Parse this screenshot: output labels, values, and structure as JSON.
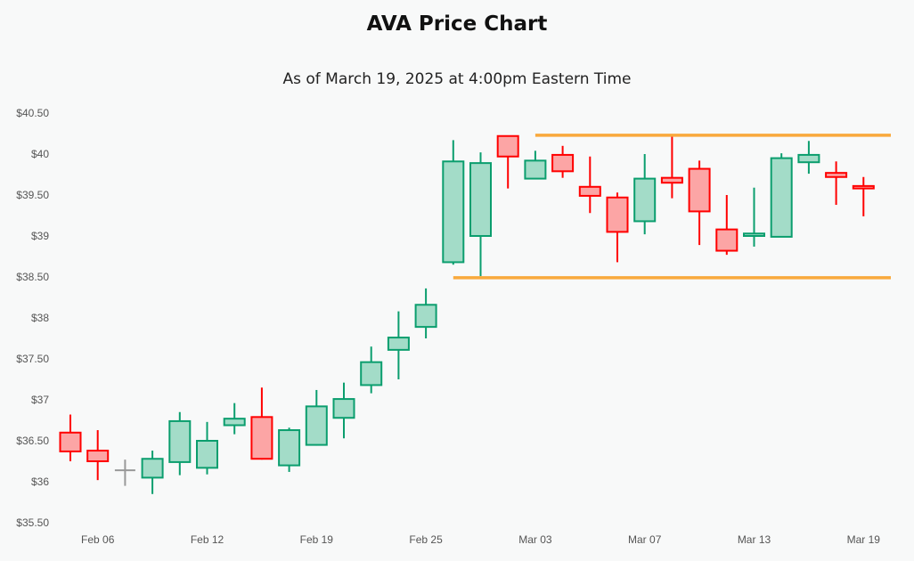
{
  "chart_data": {
    "type": "candlestick",
    "title": "AVA Price Chart",
    "subtitle": "As of March 19, 2025 at 4:00pm Eastern Time",
    "ylim": [
      35.5,
      40.5
    ],
    "y_ticks": [
      {
        "value": 40.5,
        "label": "$40.50"
      },
      {
        "value": 40,
        "label": "$40"
      },
      {
        "value": 39.5,
        "label": "$39.50"
      },
      {
        "value": 39,
        "label": "$39"
      },
      {
        "value": 38.5,
        "label": "$38.50"
      },
      {
        "value": 38,
        "label": "$38"
      },
      {
        "value": 37.5,
        "label": "$37.50"
      },
      {
        "value": 37,
        "label": "$37"
      },
      {
        "value": 36.5,
        "label": "$36.50"
      },
      {
        "value": 36,
        "label": "$36"
      },
      {
        "value": 35.5,
        "label": "$35.50"
      }
    ],
    "x_ticks": [
      {
        "date": "2025-02-06",
        "label": "Feb 06"
      },
      {
        "date": "2025-02-12",
        "label": "Feb 12"
      },
      {
        "date": "2025-02-19",
        "label": "Feb 19"
      },
      {
        "date": "2025-02-25",
        "label": "Feb 25"
      },
      {
        "date": "2025-03-03",
        "label": "Mar 03"
      },
      {
        "date": "2025-03-07",
        "label": "Mar 07"
      },
      {
        "date": "2025-03-13",
        "label": "Mar 13"
      },
      {
        "date": "2025-03-19",
        "label": "Mar 19"
      }
    ],
    "grid": false,
    "colors": {
      "up": "#0b9e6e",
      "up_fill": "#a3dcc8",
      "down": "#ff0000",
      "down_fill": "#fca5a5",
      "flat": "#999999",
      "level": "#f9a93c"
    },
    "candles": [
      {
        "date": "2025-02-05",
        "open": 36.6,
        "high": 36.82,
        "low": 36.25,
        "close": 36.37
      },
      {
        "date": "2025-02-06",
        "open": 36.38,
        "high": 36.63,
        "low": 36.02,
        "close": 36.25
      },
      {
        "date": "2025-02-07",
        "open": 36.14,
        "high": 36.27,
        "low": 35.95,
        "close": 36.14
      },
      {
        "date": "2025-02-10",
        "open": 36.05,
        "high": 36.38,
        "low": 35.85,
        "close": 36.28
      },
      {
        "date": "2025-02-11",
        "open": 36.24,
        "high": 36.85,
        "low": 36.08,
        "close": 36.74
      },
      {
        "date": "2025-02-12",
        "open": 36.17,
        "high": 36.73,
        "low": 36.09,
        "close": 36.5
      },
      {
        "date": "2025-02-13",
        "open": 36.69,
        "high": 36.96,
        "low": 36.58,
        "close": 36.77
      },
      {
        "date": "2025-02-14",
        "open": 36.79,
        "high": 37.15,
        "low": 36.27,
        "close": 36.28
      },
      {
        "date": "2025-02-18",
        "open": 36.2,
        "high": 36.66,
        "low": 36.12,
        "close": 36.63
      },
      {
        "date": "2025-02-19",
        "open": 36.45,
        "high": 37.12,
        "low": 36.44,
        "close": 36.92
      },
      {
        "date": "2025-02-20",
        "open": 36.78,
        "high": 37.21,
        "low": 36.53,
        "close": 37.01
      },
      {
        "date": "2025-02-21",
        "open": 37.18,
        "high": 37.65,
        "low": 37.08,
        "close": 37.46
      },
      {
        "date": "2025-02-24",
        "open": 37.61,
        "high": 38.08,
        "low": 37.25,
        "close": 37.76
      },
      {
        "date": "2025-02-25",
        "open": 37.89,
        "high": 38.36,
        "low": 37.75,
        "close": 38.16
      },
      {
        "date": "2025-02-26",
        "open": 38.68,
        "high": 40.17,
        "low": 38.65,
        "close": 39.91
      },
      {
        "date": "2025-02-27",
        "open": 39.0,
        "high": 40.02,
        "low": 38.51,
        "close": 39.89
      },
      {
        "date": "2025-02-28",
        "open": 40.22,
        "high": 40.22,
        "low": 39.58,
        "close": 39.97
      },
      {
        "date": "2025-03-03",
        "open": 39.7,
        "high": 40.04,
        "low": 39.7,
        "close": 39.92
      },
      {
        "date": "2025-03-04",
        "open": 39.99,
        "high": 40.1,
        "low": 39.71,
        "close": 39.79
      },
      {
        "date": "2025-03-05",
        "open": 39.6,
        "high": 39.97,
        "low": 39.28,
        "close": 39.49
      },
      {
        "date": "2025-03-06",
        "open": 39.47,
        "high": 39.53,
        "low": 38.68,
        "close": 39.05
      },
      {
        "date": "2025-03-07",
        "open": 39.18,
        "high": 40.0,
        "low": 39.02,
        "close": 39.7
      },
      {
        "date": "2025-03-10",
        "open": 39.71,
        "high": 40.22,
        "low": 39.46,
        "close": 39.65
      },
      {
        "date": "2025-03-11",
        "open": 39.82,
        "high": 39.92,
        "low": 38.89,
        "close": 39.3
      },
      {
        "date": "2025-03-12",
        "open": 39.08,
        "high": 39.5,
        "low": 38.77,
        "close": 38.82
      },
      {
        "date": "2025-03-13",
        "open": 39.0,
        "high": 39.59,
        "low": 38.87,
        "close": 39.03
      },
      {
        "date": "2025-03-14",
        "open": 38.99,
        "high": 40.01,
        "low": 38.99,
        "close": 39.95
      },
      {
        "date": "2025-03-17",
        "open": 39.9,
        "high": 40.16,
        "low": 39.76,
        "close": 39.99
      },
      {
        "date": "2025-03-18",
        "open": 39.77,
        "high": 39.91,
        "low": 39.38,
        "close": 39.72
      },
      {
        "date": "2025-03-19",
        "open": 39.61,
        "high": 39.72,
        "low": 39.24,
        "close": 39.58
      }
    ],
    "levels": [
      {
        "name": "resistance",
        "value": 40.23,
        "from": "2025-03-03",
        "to": "2025-03-19"
      },
      {
        "name": "support",
        "value": 38.49,
        "from": "2025-02-26",
        "to": "2025-03-19"
      }
    ]
  }
}
